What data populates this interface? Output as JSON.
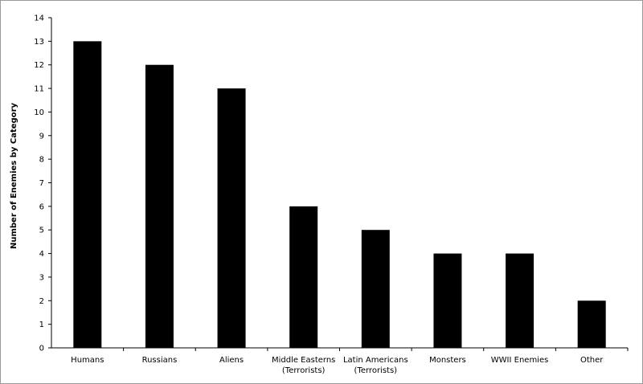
{
  "chart_data": {
    "type": "bar",
    "title": "",
    "xlabel": "",
    "ylabel": "Number of Enemies by Category",
    "ylim": [
      0,
      14
    ],
    "yticks": [
      0,
      1,
      2,
      3,
      4,
      5,
      6,
      7,
      8,
      9,
      10,
      11,
      12,
      13,
      14
    ],
    "grid": false,
    "legend": "none",
    "bar_color": "#000000",
    "categories": [
      [
        "Humans"
      ],
      [
        "Russians"
      ],
      [
        "Aliens"
      ],
      [
        "Middle Easterns",
        "(Terrorists)"
      ],
      [
        "Latin Americans",
        "(Terrorists)"
      ],
      [
        "Monsters"
      ],
      [
        "WWII Enemies"
      ],
      [
        "Other"
      ]
    ],
    "values": [
      13,
      12,
      11,
      6,
      5,
      4,
      4,
      2
    ]
  }
}
